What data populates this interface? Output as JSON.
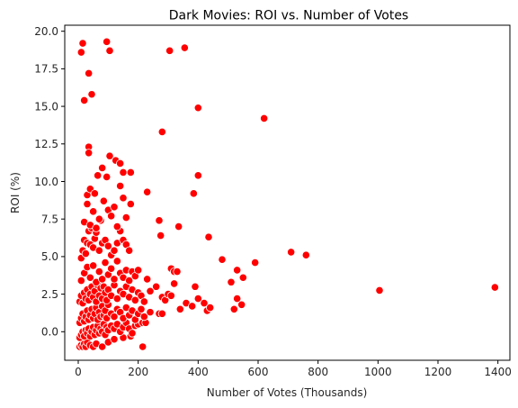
{
  "chart_data": {
    "type": "scatter",
    "title": "Dark Movies: ROI vs. Number of Votes",
    "xlabel": "Number of Votes (Thousands)",
    "ylabel": "ROI (%)",
    "xlim": [
      -45,
      1440
    ],
    "ylim": [
      -1.9,
      20.4
    ],
    "xticks": [
      "0",
      "200",
      "400",
      "600",
      "800",
      "1000",
      "1200",
      "1400"
    ],
    "xtick_values": [
      0,
      200,
      400,
      600,
      800,
      1000,
      1200,
      1400
    ],
    "yticks": [
      "0.0",
      "2.5",
      "5.0",
      "7.5",
      "10.0",
      "12.5",
      "15.0",
      "17.5",
      "20.0"
    ],
    "ytick_values": [
      0,
      2.5,
      5,
      7.5,
      10,
      12.5,
      15,
      17.5,
      20
    ],
    "grid": false,
    "marker_color": "#ff0000",
    "marker_edge": "#ffffff",
    "points": [
      [
        5,
        -1.0
      ],
      [
        10,
        -0.9
      ],
      [
        15,
        -1.0
      ],
      [
        20,
        -0.8
      ],
      [
        25,
        -1.0
      ],
      [
        30,
        -0.7
      ],
      [
        40,
        -0.9
      ],
      [
        50,
        -1.0
      ],
      [
        60,
        -0.8
      ],
      [
        80,
        -1.0
      ],
      [
        100,
        -0.7
      ],
      [
        120,
        -0.5
      ],
      [
        150,
        -0.4
      ],
      [
        175,
        -0.3
      ],
      [
        215,
        -1.0
      ],
      [
        5,
        -0.4
      ],
      [
        10,
        -0.2
      ],
      [
        15,
        0.0
      ],
      [
        20,
        -0.3
      ],
      [
        25,
        0.1
      ],
      [
        30,
        -0.1
      ],
      [
        35,
        0.2
      ],
      [
        40,
        -0.3
      ],
      [
        45,
        0.0
      ],
      [
        50,
        0.3
      ],
      [
        55,
        -0.2
      ],
      [
        60,
        0.1
      ],
      [
        65,
        0.4
      ],
      [
        70,
        -0.1
      ],
      [
        75,
        0.2
      ],
      [
        80,
        0.0
      ],
      [
        85,
        0.5
      ],
      [
        90,
        -0.2
      ],
      [
        95,
        0.3
      ],
      [
        100,
        0.1
      ],
      [
        110,
        0.4
      ],
      [
        120,
        0.2
      ],
      [
        130,
        0.5
      ],
      [
        140,
        0.0
      ],
      [
        150,
        0.3
      ],
      [
        160,
        0.6
      ],
      [
        170,
        0.2
      ],
      [
        180,
        -0.1
      ],
      [
        190,
        0.4
      ],
      [
        200,
        0.5
      ],
      [
        215,
        0.6
      ],
      [
        225,
        0.6
      ],
      [
        5,
        0.6
      ],
      [
        10,
        0.9
      ],
      [
        15,
        1.2
      ],
      [
        20,
        0.7
      ],
      [
        25,
        1.0
      ],
      [
        30,
        1.4
      ],
      [
        35,
        0.8
      ],
      [
        40,
        1.1
      ],
      [
        45,
        1.5
      ],
      [
        50,
        0.9
      ],
      [
        55,
        1.2
      ],
      [
        60,
        1.6
      ],
      [
        65,
        0.8
      ],
      [
        70,
        1.3
      ],
      [
        75,
        1.0
      ],
      [
        80,
        1.7
      ],
      [
        85,
        1.1
      ],
      [
        90,
        1.4
      ],
      [
        95,
        0.9
      ],
      [
        100,
        1.8
      ],
      [
        110,
        1.2
      ],
      [
        120,
        1.0
      ],
      [
        130,
        1.5
      ],
      [
        140,
        1.3
      ],
      [
        150,
        0.9
      ],
      [
        160,
        1.6
      ],
      [
        170,
        1.1
      ],
      [
        180,
        1.4
      ],
      [
        190,
        0.8
      ],
      [
        200,
        1.2
      ],
      [
        210,
        1.5
      ],
      [
        220,
        1.0
      ],
      [
        240,
        1.3
      ],
      [
        270,
        1.2
      ],
      [
        280,
        1.2
      ],
      [
        5,
        2.0
      ],
      [
        10,
        2.4
      ],
      [
        15,
        1.9
      ],
      [
        20,
        2.6
      ],
      [
        25,
        2.2
      ],
      [
        30,
        2.8
      ],
      [
        35,
        2.1
      ],
      [
        40,
        2.5
      ],
      [
        45,
        3.0
      ],
      [
        50,
        2.3
      ],
      [
        55,
        2.7
      ],
      [
        60,
        2.0
      ],
      [
        65,
        3.1
      ],
      [
        70,
        2.4
      ],
      [
        75,
        2.9
      ],
      [
        80,
        2.2
      ],
      [
        85,
        3.0
      ],
      [
        90,
        2.6
      ],
      [
        95,
        2.1
      ],
      [
        100,
        2.8
      ],
      [
        110,
        2.4
      ],
      [
        120,
        3.1
      ],
      [
        130,
        2.2
      ],
      [
        140,
        2.7
      ],
      [
        150,
        2.5
      ],
      [
        160,
        3.0
      ],
      [
        170,
        2.3
      ],
      [
        180,
        2.8
      ],
      [
        190,
        2.1
      ],
      [
        200,
        2.6
      ],
      [
        210,
        2.4
      ],
      [
        220,
        2.0
      ],
      [
        240,
        2.7
      ],
      [
        260,
        3.0
      ],
      [
        280,
        2.3
      ],
      [
        290,
        2.1
      ],
      [
        300,
        2.5
      ],
      [
        310,
        2.4
      ],
      [
        320,
        3.2
      ],
      [
        340,
        1.5
      ],
      [
        360,
        1.9
      ],
      [
        380,
        1.7
      ],
      [
        390,
        3.0
      ],
      [
        400,
        2.2
      ],
      [
        420,
        1.9
      ],
      [
        430,
        1.4
      ],
      [
        440,
        1.6
      ],
      [
        520,
        1.5
      ],
      [
        530,
        2.2
      ],
      [
        545,
        1.8
      ],
      [
        10,
        3.4
      ],
      [
        20,
        3.9
      ],
      [
        30,
        4.3
      ],
      [
        40,
        3.6
      ],
      [
        50,
        4.4
      ],
      [
        60,
        3.3
      ],
      [
        70,
        4.0
      ],
      [
        80,
        3.5
      ],
      [
        90,
        4.6
      ],
      [
        100,
        3.8
      ],
      [
        110,
        4.2
      ],
      [
        120,
        3.5
      ],
      [
        130,
        4.7
      ],
      [
        140,
        3.9
      ],
      [
        150,
        3.6
      ],
      [
        160,
        4.1
      ],
      [
        170,
        3.4
      ],
      [
        180,
        4.0
      ],
      [
        190,
        3.7
      ],
      [
        200,
        4.1
      ],
      [
        230,
        3.5
      ],
      [
        310,
        4.2
      ],
      [
        320,
        4.0
      ],
      [
        330,
        4.0
      ],
      [
        10,
        4.9
      ],
      [
        15,
        5.4
      ],
      [
        20,
        6.1
      ],
      [
        25,
        5.2
      ],
      [
        30,
        5.9
      ],
      [
        35,
        6.7
      ],
      [
        40,
        5.8
      ],
      [
        45,
        6.9
      ],
      [
        50,
        5.6
      ],
      [
        55,
        6.2
      ],
      [
        60,
        6.6
      ],
      [
        70,
        5.4
      ],
      [
        75,
        7.4
      ],
      [
        80,
        5.9
      ],
      [
        90,
        6.1
      ],
      [
        100,
        5.7
      ],
      [
        110,
        5.1
      ],
      [
        120,
        5.4
      ],
      [
        130,
        5.9
      ],
      [
        140,
        6.7
      ],
      [
        150,
        6.1
      ],
      [
        160,
        5.8
      ],
      [
        170,
        5.4
      ],
      [
        275,
        6.4
      ],
      [
        480,
        4.8
      ],
      [
        510,
        3.3
      ],
      [
        530,
        4.1
      ],
      [
        550,
        3.6
      ],
      [
        590,
        4.6
      ],
      [
        710,
        5.3
      ],
      [
        760,
        5.1
      ],
      [
        1005,
        2.75
      ],
      [
        1390,
        2.95
      ],
      [
        335,
        7.0
      ],
      [
        435,
        6.3
      ],
      [
        20,
        7.3
      ],
      [
        30,
        8.5
      ],
      [
        40,
        7.1
      ],
      [
        50,
        8.0
      ],
      [
        60,
        6.9
      ],
      [
        70,
        7.5
      ],
      [
        85,
        8.7
      ],
      [
        100,
        8.1
      ],
      [
        110,
        7.7
      ],
      [
        120,
        8.3
      ],
      [
        130,
        7.0
      ],
      [
        150,
        8.9
      ],
      [
        160,
        7.6
      ],
      [
        175,
        8.5
      ],
      [
        270,
        7.4
      ],
      [
        385,
        9.2
      ],
      [
        400,
        10.4
      ],
      [
        230,
        9.3
      ],
      [
        140,
        9.7
      ],
      [
        30,
        9.1
      ],
      [
        40,
        9.5
      ],
      [
        55,
        9.2
      ],
      [
        65,
        10.4
      ],
      [
        80,
        10.9
      ],
      [
        95,
        10.3
      ],
      [
        105,
        11.7
      ],
      [
        125,
        11.4
      ],
      [
        150,
        10.6
      ],
      [
        175,
        10.6
      ],
      [
        140,
        11.2
      ],
      [
        280,
        13.3
      ],
      [
        400,
        14.9
      ],
      [
        620,
        14.2
      ],
      [
        35,
        12.3
      ],
      [
        35,
        11.9
      ],
      [
        20,
        15.4
      ],
      [
        45,
        15.8
      ],
      [
        35,
        17.2
      ],
      [
        10,
        18.6
      ],
      [
        15,
        19.2
      ],
      [
        95,
        19.3
      ],
      [
        105,
        18.7
      ],
      [
        305,
        18.7
      ],
      [
        355,
        18.9
      ]
    ]
  }
}
